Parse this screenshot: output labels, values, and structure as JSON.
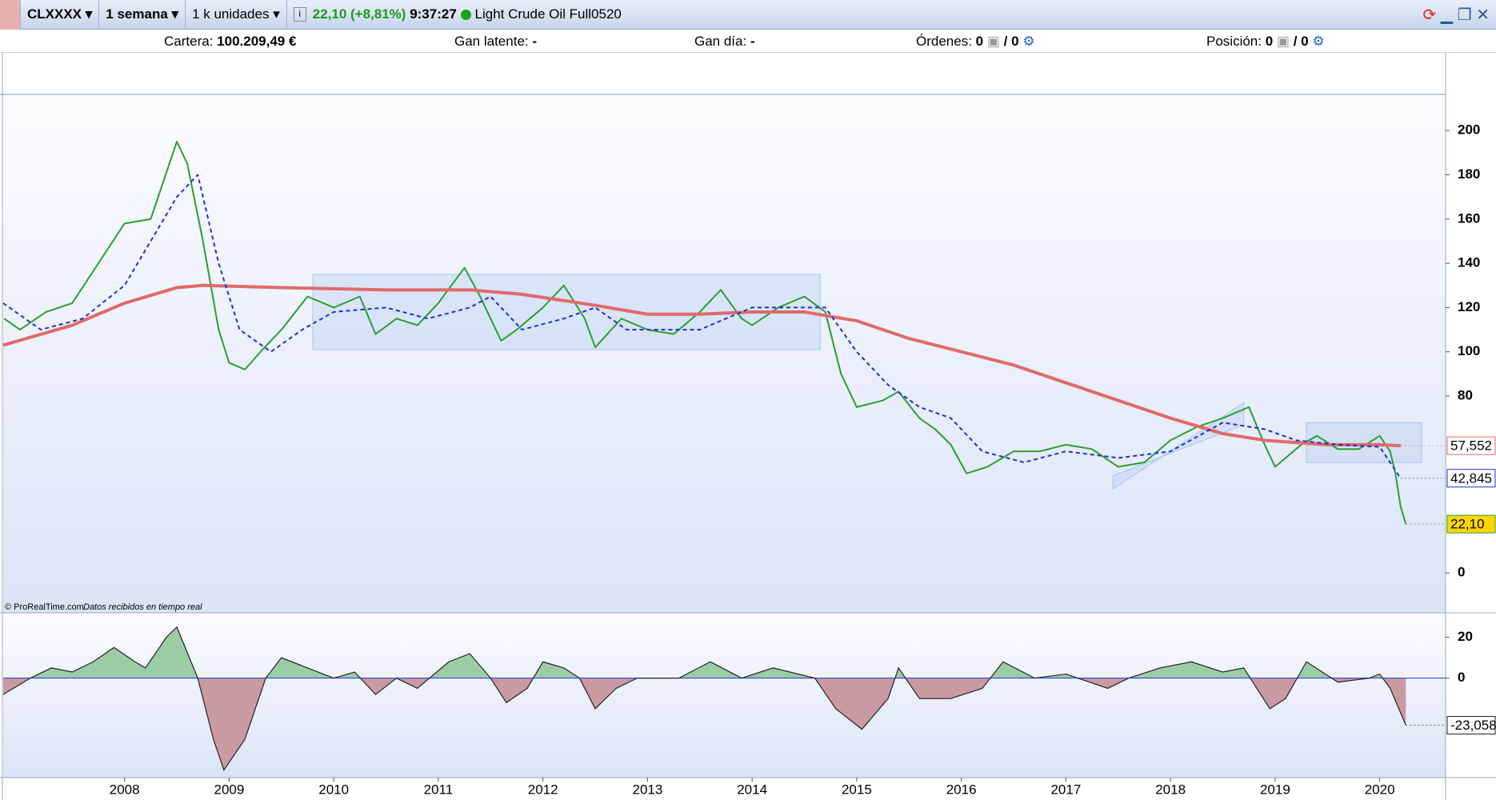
{
  "toolbar": {
    "symbol": "CLXXXX",
    "period": "1 semana",
    "units": "1 k unidades",
    "change": "22,10 (+8,81%)",
    "time": "9:37:27",
    "name": "Light Crude Oil Full0520"
  },
  "info": {
    "portfolio_label": "Cartera:",
    "portfolio_value": "100.209,49 €",
    "latent_label": "Gan latente:",
    "latent_value": "-",
    "day_label": "Gan día:",
    "day_value": "-",
    "orders_label": "Órdenes:",
    "orders_a": "0",
    "orders_b": "/ 0",
    "position_label": "Posición:",
    "position_a": "0",
    "position_b": "/ 0"
  },
  "footer": {
    "copyright": "© ProRealTime.com",
    "note": "Datos recibidos en tiempo real"
  },
  "chart_data": [
    {
      "type": "line",
      "xlim": [
        2006.84,
        2020.63
      ],
      "xticks": [
        2008,
        2009,
        2010,
        2011,
        2012,
        2013,
        2014,
        2015,
        2016,
        2017,
        2018,
        2019,
        2020
      ],
      "ylim": [
        -18,
        216
      ],
      "yticks": [
        0,
        80,
        100,
        120,
        140,
        160,
        180,
        200
      ],
      "zones": [
        {
          "x": [
            2009.8,
            2014.65
          ],
          "y": [
            101,
            135
          ],
          "color": "#aac4f0"
        },
        {
          "x": [
            2019.3,
            2020.4
          ],
          "y": [
            50,
            68
          ],
          "color": "#aac4f0"
        }
      ],
      "channel": {
        "points": [
          [
            2017.45,
            38
          ],
          [
            2018.7,
            77
          ],
          [
            2018.7,
            67
          ],
          [
            2017.45,
            44
          ]
        ],
        "color": "#aac4f0"
      },
      "series": [
        {
          "color": "#2e9e2e",
          "label_fill": "#ffd700",
          "x": [
            2006.85,
            2007.0,
            2007.25,
            2007.5,
            2007.75,
            2008.0,
            2008.25,
            2008.5,
            2008.6,
            2008.75,
            2008.9,
            2009.0,
            2009.15,
            2009.3,
            2009.5,
            2009.75,
            2010.0,
            2010.25,
            2010.4,
            2010.6,
            2010.8,
            2011.0,
            2011.25,
            2011.4,
            2011.6,
            2011.75,
            2012.0,
            2012.2,
            2012.4,
            2012.5,
            2012.75,
            2013.0,
            2013.25,
            2013.5,
            2013.7,
            2013.9,
            2014.0,
            2014.25,
            2014.5,
            2014.7,
            2014.85,
            2015.0,
            2015.25,
            2015.4,
            2015.6,
            2015.75,
            2015.9,
            2016.05,
            2016.25,
            2016.5,
            2016.75,
            2017.0,
            2017.25,
            2017.5,
            2017.75,
            2018.0,
            2018.25,
            2018.5,
            2018.75,
            2018.9,
            2019.0,
            2019.25,
            2019.4,
            2019.6,
            2019.8,
            2020.0,
            2020.1,
            2020.15,
            2020.2,
            2020.25
          ],
          "values": [
            115,
            110,
            118,
            122,
            140,
            158,
            160,
            195,
            185,
            150,
            110,
            95,
            92,
            100,
            110,
            125,
            120,
            125,
            108,
            115,
            112,
            122,
            138,
            125,
            105,
            110,
            120,
            130,
            115,
            102,
            115,
            110,
            108,
            118,
            128,
            115,
            112,
            120,
            125,
            118,
            90,
            75,
            78,
            82,
            70,
            65,
            58,
            45,
            48,
            55,
            55,
            58,
            56,
            48,
            50,
            60,
            66,
            70,
            75,
            58,
            48,
            58,
            62,
            56,
            56,
            62,
            55,
            45,
            30,
            22.1
          ],
          "value_labels": [
            null,
            null,
            null,
            null,
            null,
            null,
            null,
            null,
            null,
            null,
            null,
            null,
            null,
            null,
            null,
            null,
            null,
            null,
            null,
            null,
            null,
            null,
            null,
            null,
            null,
            null,
            null,
            null,
            null,
            null,
            null,
            null,
            null,
            null,
            null,
            null,
            null,
            null,
            null,
            null,
            null,
            null,
            null,
            null,
            null,
            null,
            null,
            null,
            null,
            null,
            null,
            null,
            null,
            null,
            null,
            null,
            null,
            null,
            null,
            null,
            null,
            null,
            null,
            null,
            null,
            null,
            null,
            null,
            null,
            "22,10"
          ]
        },
        {
          "color": "#e06a6a",
          "label_fill": "#ffffff",
          "x": [
            2006.84,
            2007.5,
            2008.0,
            2008.5,
            2008.75,
            2009.5,
            2010.5,
            2011.3,
            2011.8,
            2012.5,
            2013.0,
            2013.5,
            2014.0,
            2014.5,
            2015.0,
            2015.5,
            2016.0,
            2016.5,
            2017.0,
            2017.5,
            2018.0,
            2018.5,
            2018.9,
            2019.5,
            2020.0,
            2020.2
          ],
          "values": [
            103,
            112,
            122,
            129,
            130,
            129,
            128,
            128,
            126,
            121,
            117,
            117,
            118,
            118,
            114,
            106,
            100,
            94,
            86,
            78,
            70,
            63,
            60,
            58,
            58,
            57.552
          ],
          "value_labels": [
            null,
            null,
            null,
            null,
            null,
            null,
            null,
            null,
            null,
            null,
            null,
            null,
            null,
            null,
            null,
            null,
            null,
            null,
            null,
            null,
            null,
            null,
            null,
            null,
            null,
            "57,552"
          ]
        },
        {
          "color": "#1f2fd6",
          "label_fill": "#ffffff",
          "dashed": true,
          "x": [
            2006.84,
            2007.2,
            2007.6,
            2008.0,
            2008.5,
            2008.7,
            2008.9,
            2009.1,
            2009.4,
            2009.7,
            2010.0,
            2010.5,
            2010.9,
            2011.3,
            2011.5,
            2011.8,
            2012.2,
            2012.5,
            2012.8,
            2013.5,
            2014.0,
            2014.7,
            2015.0,
            2015.3,
            2015.6,
            2015.9,
            2016.2,
            2016.6,
            2017.0,
            2017.5,
            2018.0,
            2018.5,
            2018.9,
            2019.2,
            2019.6,
            2020.0,
            2020.2
          ],
          "values": [
            122,
            110,
            115,
            130,
            170,
            180,
            140,
            110,
            100,
            110,
            118,
            120,
            115,
            120,
            125,
            110,
            115,
            120,
            110,
            110,
            120,
            120,
            100,
            85,
            75,
            70,
            55,
            50,
            55,
            52,
            55,
            68,
            65,
            60,
            58,
            57,
            42.845
          ],
          "value_labels": [
            null,
            null,
            null,
            null,
            null,
            null,
            null,
            null,
            null,
            null,
            null,
            null,
            null,
            null,
            null,
            null,
            null,
            null,
            null,
            null,
            null,
            null,
            null,
            null,
            null,
            null,
            null,
            null,
            null,
            null,
            null,
            null,
            null,
            null,
            null,
            null,
            "42,845"
          ]
        }
      ]
    },
    {
      "type": "area",
      "xlim": [
        2006.84,
        2020.63
      ],
      "ylim": [
        -48.7,
        31.6
      ],
      "yticks": [
        0,
        20
      ],
      "zero_color": "#2233cc",
      "positive_color": "#9ccca6",
      "negative_color": "#c99aa2",
      "series": [
        {
          "color": "#222222",
          "label_fill": "#ffffff",
          "x": [
            2006.84,
            2007.1,
            2007.3,
            2007.5,
            2007.7,
            2007.9,
            2008.1,
            2008.2,
            2008.4,
            2008.5,
            2008.7,
            2008.85,
            2008.95,
            2009.15,
            2009.35,
            2009.5,
            2009.75,
            2010.0,
            2010.2,
            2010.4,
            2010.6,
            2010.8,
            2011.1,
            2011.3,
            2011.5,
            2011.65,
            2011.85,
            2012.0,
            2012.2,
            2012.35,
            2012.5,
            2012.7,
            2012.9,
            2013.3,
            2013.6,
            2013.9,
            2014.2,
            2014.6,
            2014.8,
            2015.05,
            2015.3,
            2015.4,
            2015.6,
            2015.9,
            2016.2,
            2016.4,
            2016.7,
            2017.0,
            2017.4,
            2017.6,
            2017.9,
            2018.2,
            2018.5,
            2018.7,
            2018.95,
            2019.1,
            2019.3,
            2019.6,
            2019.9,
            2020.0,
            2020.1,
            2020.25
          ],
          "values": [
            -8,
            0,
            5,
            3,
            8,
            15,
            8,
            5,
            20,
            25,
            0,
            -30,
            -45,
            -30,
            0,
            10,
            5,
            0,
            3,
            -8,
            0,
            -5,
            8,
            12,
            0,
            -12,
            -5,
            8,
            5,
            0,
            -15,
            -5,
            0,
            0,
            8,
            0,
            5,
            0,
            -15,
            -25,
            -10,
            5,
            -10,
            -10,
            -5,
            8,
            0,
            2,
            -5,
            0,
            5,
            8,
            3,
            5,
            -15,
            -10,
            8,
            -2,
            0,
            2,
            -5,
            -23.058
          ],
          "value_labels": [
            null,
            null,
            null,
            null,
            null,
            null,
            null,
            null,
            null,
            null,
            null,
            null,
            null,
            null,
            null,
            null,
            null,
            null,
            null,
            null,
            null,
            null,
            null,
            null,
            null,
            null,
            null,
            null,
            null,
            null,
            null,
            null,
            null,
            null,
            null,
            null,
            null,
            null,
            null,
            null,
            null,
            null,
            null,
            null,
            null,
            null,
            null,
            null,
            null,
            null,
            null,
            null,
            null,
            null,
            null,
            null,
            null,
            null,
            null,
            null,
            null,
            "-23,058"
          ]
        }
      ]
    }
  ]
}
